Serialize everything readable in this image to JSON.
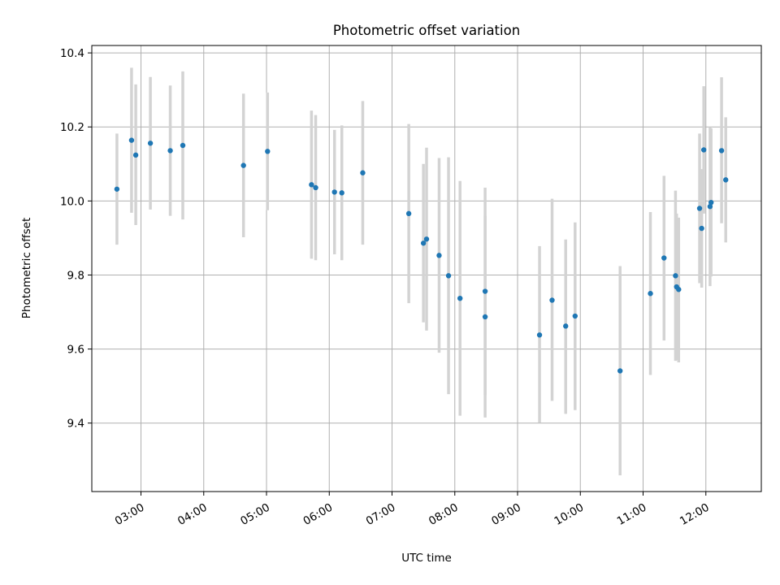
{
  "chart_data": {
    "type": "scatter",
    "title": "Photometric offset variation",
    "xlabel": "UTC time",
    "ylabel": "Photometric offset",
    "x_axis_type": "time",
    "xlim": [
      "02:13",
      "12:53"
    ],
    "ylim": [
      9.215,
      10.42
    ],
    "yticks": [
      "9.4",
      "9.6",
      "9.8",
      "10.0",
      "10.2",
      "10.4"
    ],
    "xticks": [
      "03:00",
      "04:00",
      "05:00",
      "06:00",
      "07:00",
      "08:00",
      "09:00",
      "10:00",
      "11:00",
      "12:00"
    ],
    "grid": true,
    "marker_color": "#1f77b4",
    "errorbar_color": "#d3d3d3",
    "series": [
      {
        "points": [
          {
            "x": "02:37",
            "y": 10.032,
            "lo": 9.882,
            "hi": 10.182
          },
          {
            "x": "02:51",
            "y": 10.164,
            "lo": 9.968,
            "hi": 10.36
          },
          {
            "x": "02:55",
            "y": 10.124,
            "lo": 9.935,
            "hi": 10.315
          },
          {
            "x": "03:09",
            "y": 10.156,
            "lo": 9.977,
            "hi": 10.335
          },
          {
            "x": "03:28",
            "y": 10.136,
            "lo": 9.96,
            "hi": 10.312
          },
          {
            "x": "03:40",
            "y": 10.15,
            "lo": 9.95,
            "hi": 10.35
          },
          {
            "x": "04:38",
            "y": 10.096,
            "lo": 9.902,
            "hi": 10.29
          },
          {
            "x": "05:01",
            "y": 10.134,
            "lo": 9.975,
            "hi": 10.293
          },
          {
            "x": "05:43",
            "y": 10.044,
            "lo": 9.844,
            "hi": 10.244
          },
          {
            "x": "05:47",
            "y": 10.036,
            "lo": 9.84,
            "hi": 10.232
          },
          {
            "x": "06:05",
            "y": 10.024,
            "lo": 9.856,
            "hi": 10.192
          },
          {
            "x": "06:12",
            "y": 10.022,
            "lo": 9.84,
            "hi": 10.204
          },
          {
            "x": "06:32",
            "y": 10.076,
            "lo": 9.882,
            "hi": 10.27
          },
          {
            "x": "07:16",
            "y": 9.966,
            "lo": 9.724,
            "hi": 10.208
          },
          {
            "x": "07:30",
            "y": 9.886,
            "lo": 9.672,
            "hi": 10.1
          },
          {
            "x": "07:33",
            "y": 9.897,
            "lo": 9.65,
            "hi": 10.144
          },
          {
            "x": "07:45",
            "y": 9.853,
            "lo": 9.59,
            "hi": 10.116
          },
          {
            "x": "07:54",
            "y": 9.798,
            "lo": 9.478,
            "hi": 10.118
          },
          {
            "x": "08:05",
            "y": 9.737,
            "lo": 9.42,
            "hi": 10.054
          },
          {
            "x": "08:29",
            "y": 9.756,
            "lo": 9.476,
            "hi": 10.036
          },
          {
            "x": "08:29",
            "y": 9.687,
            "lo": 9.415,
            "hi": 9.96
          },
          {
            "x": "09:21",
            "y": 9.638,
            "lo": 9.401,
            "hi": 9.878
          },
          {
            "x": "09:33",
            "y": 9.732,
            "lo": 9.46,
            "hi": 10.006
          },
          {
            "x": "09:46",
            "y": 9.662,
            "lo": 9.425,
            "hi": 9.896
          },
          {
            "x": "09:55",
            "y": 9.689,
            "lo": 9.435,
            "hi": 9.942
          },
          {
            "x": "10:38",
            "y": 9.541,
            "lo": 9.259,
            "hi": 9.824
          },
          {
            "x": "11:07",
            "y": 9.75,
            "lo": 9.53,
            "hi": 9.97
          },
          {
            "x": "11:20",
            "y": 9.846,
            "lo": 9.623,
            "hi": 10.068
          },
          {
            "x": "11:31",
            "y": 9.798,
            "lo": 9.568,
            "hi": 10.028
          },
          {
            "x": "11:32",
            "y": 9.768,
            "lo": 9.57,
            "hi": 9.966
          },
          {
            "x": "11:34",
            "y": 9.761,
            "lo": 9.564,
            "hi": 9.955
          },
          {
            "x": "11:54",
            "y": 9.98,
            "lo": 9.778,
            "hi": 10.182
          },
          {
            "x": "11:56",
            "y": 9.926,
            "lo": 9.766,
            "hi": 10.086
          },
          {
            "x": "11:58",
            "y": 10.138,
            "lo": 9.966,
            "hi": 10.31
          },
          {
            "x": "12:04",
            "y": 9.985,
            "lo": 9.77,
            "hi": 10.2
          },
          {
            "x": "12:05",
            "y": 9.996,
            "lo": 9.796,
            "hi": 10.196
          },
          {
            "x": "12:15",
            "y": 10.136,
            "lo": 9.94,
            "hi": 10.334
          },
          {
            "x": "12:19",
            "y": 10.057,
            "lo": 9.888,
            "hi": 10.226
          }
        ]
      }
    ]
  }
}
